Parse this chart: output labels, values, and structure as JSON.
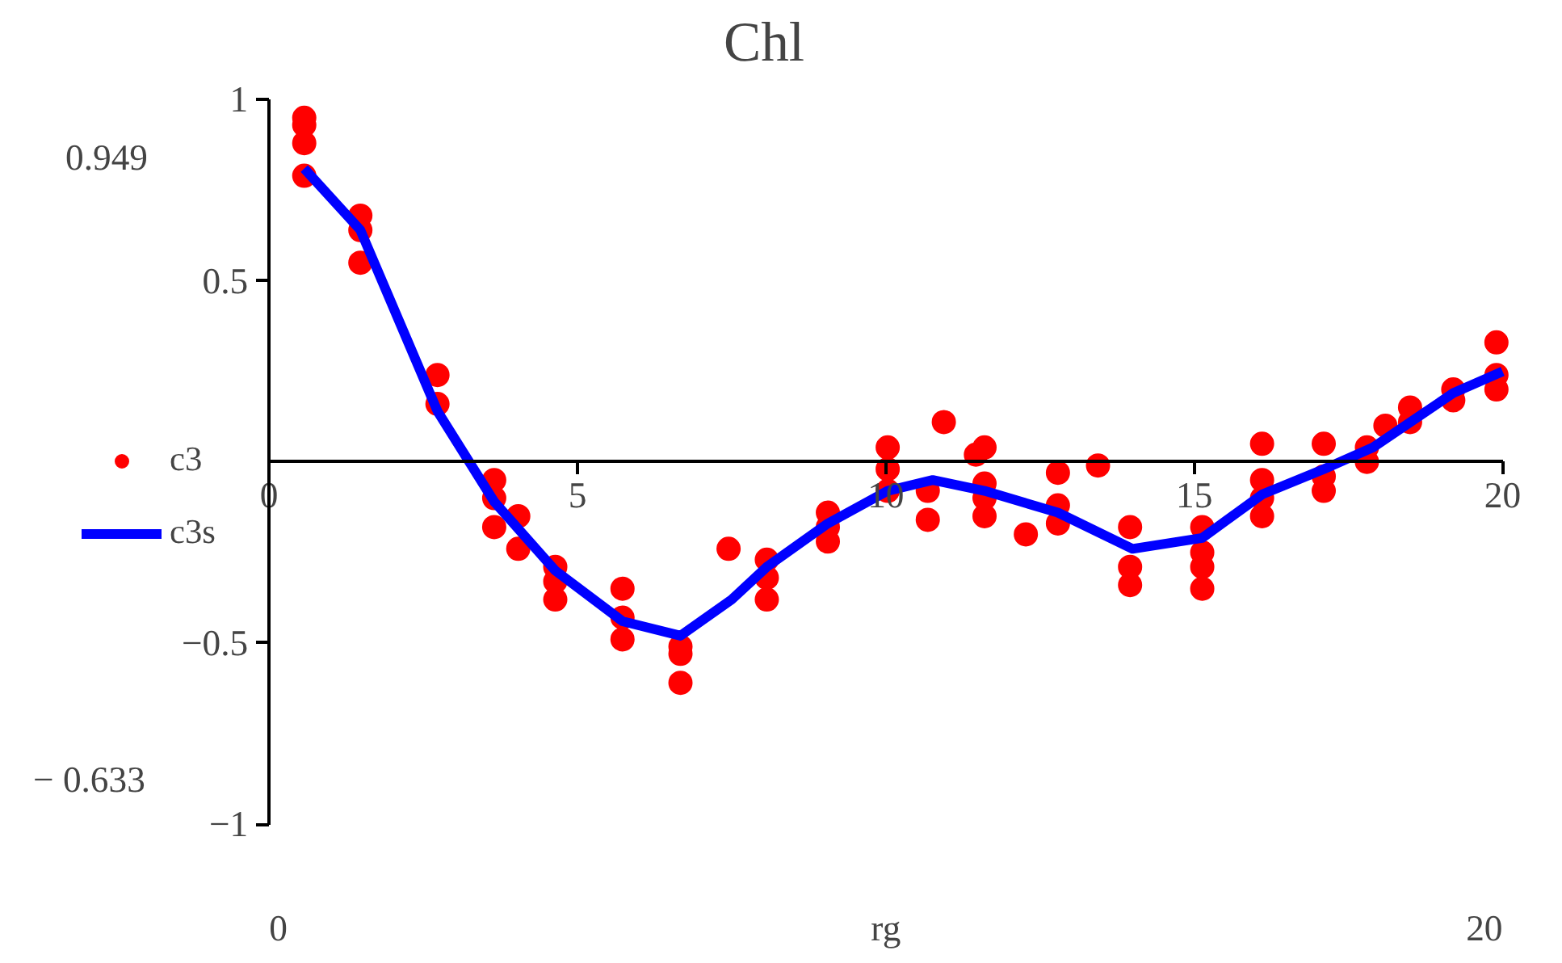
{
  "chart_data": {
    "type": "scatter",
    "title": "Chl",
    "xlabel": "rg",
    "xlim": [
      0,
      20
    ],
    "ylim": [
      -1,
      1
    ],
    "xticks": [
      0,
      5,
      10,
      15,
      20
    ],
    "yticks": [
      -1,
      -0.5,
      0.5,
      1
    ],
    "grid": false,
    "legend": "left",
    "annotations": [
      "0.949",
      "− 0.633",
      "0",
      "20"
    ],
    "series": [
      {
        "name": "c3",
        "color": "#ff0000",
        "marker": "circle",
        "x": [
          0.57,
          0.57,
          0.57,
          0.57,
          1.48,
          1.48,
          1.48,
          2.73,
          2.73,
          3.65,
          3.65,
          3.65,
          4.04,
          4.04,
          4.64,
          4.64,
          4.64,
          5.73,
          5.73,
          5.73,
          6.67,
          6.67,
          6.67,
          7.45,
          8.07,
          8.07,
          8.07,
          9.06,
          9.06,
          9.06,
          10.03,
          10.03,
          10.03,
          10.68,
          10.68,
          10.94,
          11.46,
          11.6,
          11.6,
          11.6,
          11.6,
          12.27,
          12.79,
          12.79,
          12.79,
          13.44,
          13.96,
          13.96,
          13.96,
          15.13,
          15.13,
          15.13,
          15.13,
          16.1,
          16.1,
          16.1,
          16.1,
          17.1,
          17.1,
          17.1,
          17.8,
          17.8,
          18.1,
          18.5,
          18.5,
          19.2,
          19.2,
          19.9,
          19.9,
          19.9
        ],
        "values": [
          0.95,
          0.93,
          0.88,
          0.79,
          0.68,
          0.64,
          0.55,
          0.24,
          0.16,
          -0.05,
          -0.1,
          -0.18,
          -0.15,
          -0.24,
          -0.29,
          -0.33,
          -0.38,
          -0.35,
          -0.43,
          -0.49,
          -0.51,
          -0.53,
          -0.61,
          -0.24,
          -0.27,
          -0.32,
          -0.38,
          -0.14,
          -0.18,
          -0.22,
          0.04,
          -0.02,
          -0.08,
          -0.08,
          -0.16,
          0.11,
          0.02,
          0.04,
          -0.06,
          -0.1,
          -0.15,
          -0.2,
          -0.03,
          -0.12,
          -0.17,
          -0.01,
          -0.18,
          -0.29,
          -0.34,
          -0.18,
          -0.25,
          -0.29,
          -0.35,
          0.05,
          -0.05,
          -0.1,
          -0.15,
          0.05,
          -0.04,
          -0.08,
          0.04,
          0.0,
          0.1,
          0.15,
          0.11,
          0.2,
          0.17,
          0.33,
          0.24,
          0.2
        ]
      },
      {
        "name": "c3s",
        "type": "line",
        "color": "#0000ff",
        "line_style": "solid",
        "marker": "none",
        "x": [
          0.57,
          1.48,
          2.73,
          3.65,
          4.64,
          5.73,
          6.67,
          7.5,
          8.07,
          9.06,
          10.03,
          10.76,
          11.6,
          12.79,
          14.0,
          15.13,
          16.1,
          17.1,
          17.9,
          19.2,
          20
        ],
        "values": [
          0.81,
          0.64,
          0.14,
          -0.11,
          -0.3,
          -0.44,
          -0.48,
          -0.38,
          -0.29,
          -0.17,
          -0.08,
          -0.05,
          -0.08,
          -0.14,
          -0.24,
          -0.21,
          -0.09,
          -0.02,
          0.04,
          0.19,
          0.25
        ]
      }
    ]
  }
}
